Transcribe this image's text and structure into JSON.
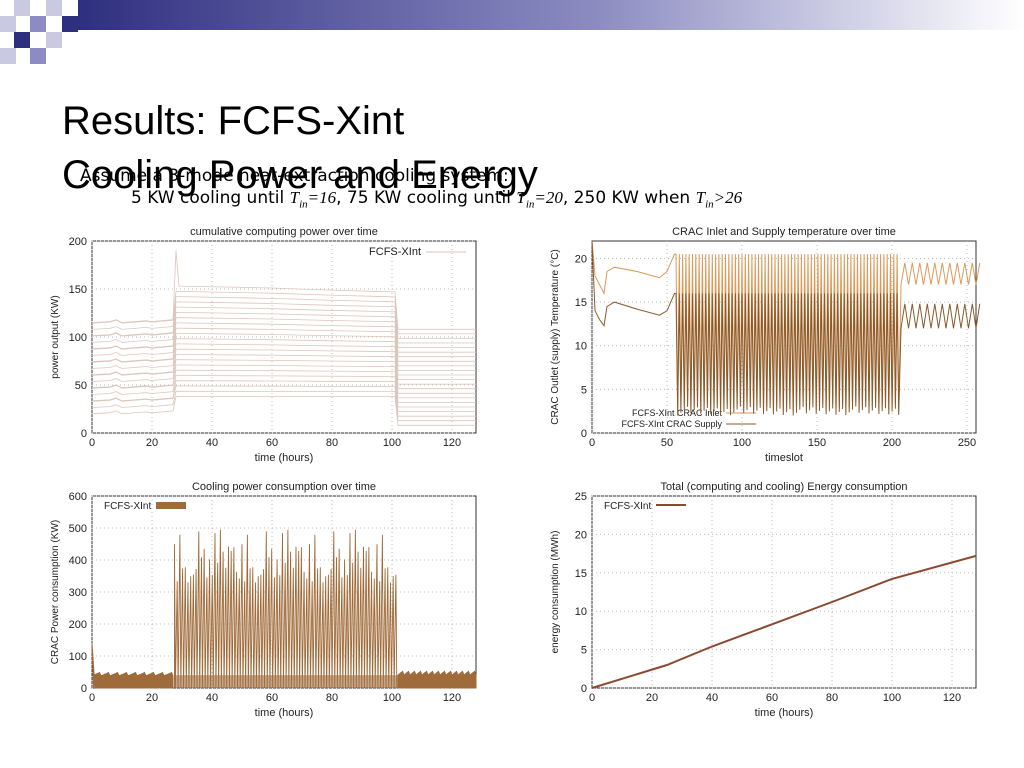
{
  "slide": {
    "title_line1": "Results: FCFS-Xint",
    "title_line2": "Cooling Power and Energy",
    "sub1": "Assume a 3-mode heat-extraction cooling system:",
    "sub2": {
      "p1": "5 KW cooling until ",
      "v1": "T",
      "s1": "in",
      "e1": "=16",
      "p2": ", 75 KW cooling until ",
      "v2": "T",
      "s2": "in",
      "e2": "=20",
      "p3": ", 250 KW when ",
      "v3": "T",
      "s3": "in",
      "e3": ">26"
    },
    "colors": {
      "deco_dark": "#2f2f80",
      "deco_mid": "#8c8cc2",
      "deco_light": "#c9c9e2"
    }
  },
  "chart_data": [
    {
      "type": "line",
      "title": "cumulative computing power over time",
      "xlabel": "time (hours)",
      "ylabel": "power output (KW)",
      "xlim": [
        0,
        128
      ],
      "ylim": [
        0,
        200
      ],
      "xticks": [
        0,
        20,
        40,
        60,
        80,
        100,
        120
      ],
      "yticks": [
        0,
        50,
        100,
        150,
        200
      ],
      "legend": [
        "FCFS-XInt"
      ],
      "legend_position": "top-right",
      "color": "#dcc6bc",
      "series": [
        {
          "name": "FCFS-XInt",
          "description_values": {
            "before_28h_top": 115,
            "spike_28h": 190,
            "plateau_28_102_top": 153,
            "after_102h_top": 108
          }
        }
      ]
    },
    {
      "type": "line",
      "title": "CRAC Inlet and Supply temperature over time",
      "xlabel": "timeslot",
      "ylabel": "CRAC Outlet (supply) Temperature (°C)",
      "xlim": [
        0,
        256
      ],
      "ylim": [
        0,
        22
      ],
      "xticks": [
        0,
        50,
        100,
        150,
        200,
        250
      ],
      "yticks": [
        0,
        5,
        10,
        15,
        20
      ],
      "legend_position": "bottom-center",
      "series": [
        {
          "name": "FCFS-XInt CRAC Inlet",
          "color": "#d99a5a",
          "x": [
            0,
            2,
            5,
            8,
            10,
            15,
            30,
            45,
            50,
            55
          ],
          "y": [
            22,
            18,
            17,
            16,
            18.5,
            19,
            18.5,
            17.8,
            18.5,
            20.5
          ]
        },
        {
          "name": "FCFS-XInt CRAC Supply",
          "color": "#8b5a2b",
          "x": [
            0,
            2,
            5,
            8,
            10,
            15,
            30,
            45,
            50,
            55
          ],
          "y": [
            22,
            14,
            13,
            12.3,
            14.5,
            15,
            14.2,
            13.5,
            14,
            16
          ]
        }
      ]
    },
    {
      "type": "line",
      "title": "Cooling power consumption over time",
      "xlabel": "time (hours)",
      "ylabel": "CRAC Power consumption (KW)",
      "xlim": [
        0,
        128
      ],
      "ylim": [
        0,
        600
      ],
      "xticks": [
        0,
        20,
        40,
        60,
        80,
        100,
        120
      ],
      "yticks": [
        0,
        100,
        200,
        300,
        400,
        500,
        600
      ],
      "legend": [
        "FCFS-XInt"
      ],
      "legend_position": "top-left",
      "color": "#a06b3a",
      "series": [
        {
          "name": "FCFS-XInt",
          "description_values": {
            "initial_peak": 140,
            "base_0_27h": 45,
            "spikes_28_102h_max": 505,
            "base_after_102h": 45
          }
        }
      ]
    },
    {
      "type": "line",
      "title": "Total (computing and cooling) Energy consumption",
      "xlabel": "time (hours)",
      "ylabel": "energy consumption (MWh)",
      "xlim": [
        0,
        128
      ],
      "ylim": [
        0,
        25
      ],
      "xticks": [
        0,
        20,
        40,
        60,
        80,
        100,
        120
      ],
      "yticks": [
        0,
        5,
        10,
        15,
        20,
        25
      ],
      "legend": [
        "FCFS-XInt"
      ],
      "legend_position": "top-left",
      "color": "#8b4a30",
      "series": [
        {
          "name": "FCFS-XInt",
          "x": [
            0,
            25,
            40,
            60,
            80,
            100,
            128
          ],
          "y": [
            0,
            3,
            5.4,
            8.3,
            11.2,
            14.2,
            17.2
          ]
        }
      ]
    }
  ]
}
